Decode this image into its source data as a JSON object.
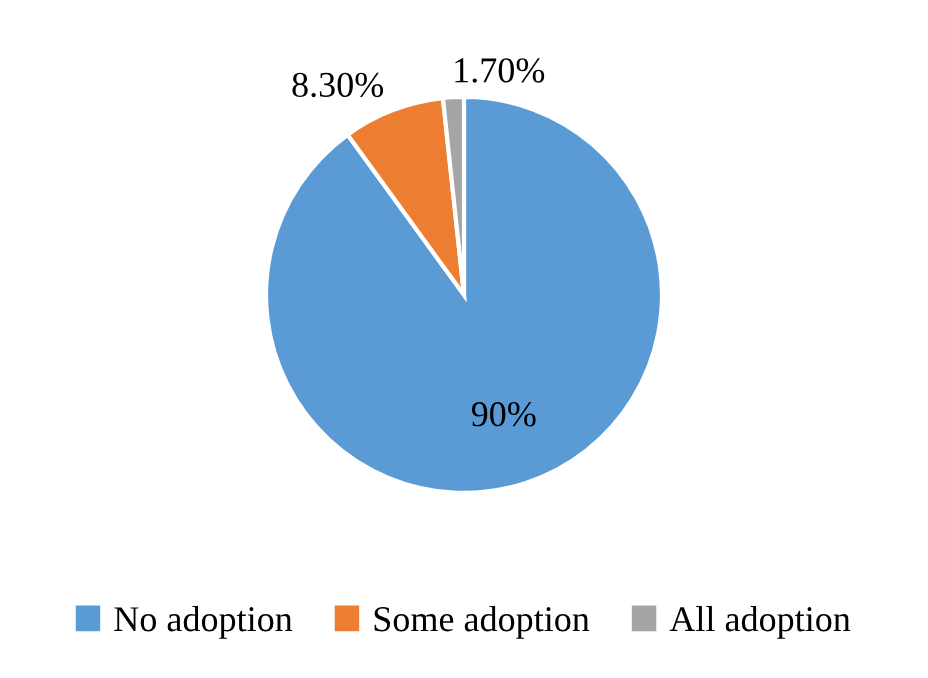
{
  "chart_data": {
    "type": "pie",
    "categories": [
      "No adoption",
      "Some adoption",
      "All adoption"
    ],
    "values": [
      90,
      8.3,
      1.7
    ],
    "value_labels": [
      "90%",
      "8.30%",
      "1.70%"
    ],
    "colors": [
      "#5b9bd5",
      "#ed7d31",
      "#a5a5a5"
    ],
    "legend": "bottom"
  }
}
